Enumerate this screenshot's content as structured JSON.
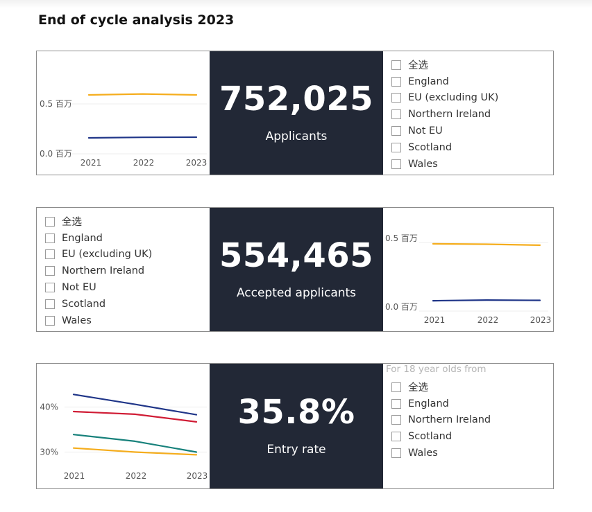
{
  "page_title": "End of cycle analysis 2023",
  "colors": {
    "yellow": "#f5ad1d",
    "navy": "#1f3588",
    "red": "#d01c35",
    "teal": "#17817b",
    "card_bg": "#222836"
  },
  "kpis": [
    {
      "value": "752,025",
      "label": "Applicants"
    },
    {
      "value": "554,465",
      "label": "Accepted applicants"
    },
    {
      "value": "35.8%",
      "label": "Entry rate"
    }
  ],
  "slicers": [
    {
      "header": "",
      "options": [
        "全选",
        "England",
        "EU (excluding UK)",
        "Northern Ireland",
        "Not EU",
        "Scotland",
        "Wales"
      ]
    },
    {
      "header": "",
      "options": [
        "全选",
        "England",
        "EU (excluding UK)",
        "Northern Ireland",
        "Not EU",
        "Scotland",
        "Wales"
      ]
    },
    {
      "header": "For 18 year olds from",
      "options": [
        "全选",
        "England",
        "Northern Ireland",
        "Scotland",
        "Wales"
      ]
    }
  ],
  "chart_data": [
    {
      "type": "line",
      "x": [
        "2021",
        "2022",
        "2023"
      ],
      "y_ticks": [
        {
          "value": 0.5,
          "label": "0.5 百万"
        },
        {
          "value": 0.0,
          "label": "0.0 百万"
        }
      ],
      "ylim": [
        0,
        0.75
      ],
      "series": [
        {
          "color": "#f5ad1d",
          "values": [
            0.59,
            0.6,
            0.59
          ]
        },
        {
          "color": "#1f3588",
          "values": [
            0.16,
            0.165,
            0.167
          ]
        }
      ]
    },
    {
      "type": "line",
      "x": [
        "2021",
        "2022",
        "2023"
      ],
      "y_ticks": [
        {
          "value": 0.5,
          "label": "0.5 百万"
        },
        {
          "value": 0.0,
          "label": "0.0 百万"
        }
      ],
      "ylim": [
        0,
        0.55
      ],
      "series": [
        {
          "color": "#f5ad1d",
          "values": [
            0.49,
            0.487,
            0.48
          ]
        },
        {
          "color": "#1f3588",
          "values": [
            0.075,
            0.08,
            0.078
          ]
        }
      ]
    },
    {
      "type": "line",
      "x": [
        "2021",
        "2022",
        "2023"
      ],
      "y_ticks": [
        {
          "value": 40,
          "label": "40%"
        },
        {
          "value": 30,
          "label": "30%"
        }
      ],
      "ylim": [
        25,
        45
      ],
      "series": [
        {
          "color": "#1f3588",
          "values": [
            42.8,
            40.6,
            38.3
          ]
        },
        {
          "color": "#d01c35",
          "values": [
            39.0,
            38.4,
            36.7
          ]
        },
        {
          "color": "#17817b",
          "values": [
            33.9,
            32.4,
            30.0
          ]
        },
        {
          "color": "#f5ad1d",
          "values": [
            30.9,
            30.0,
            29.4
          ]
        }
      ]
    }
  ]
}
